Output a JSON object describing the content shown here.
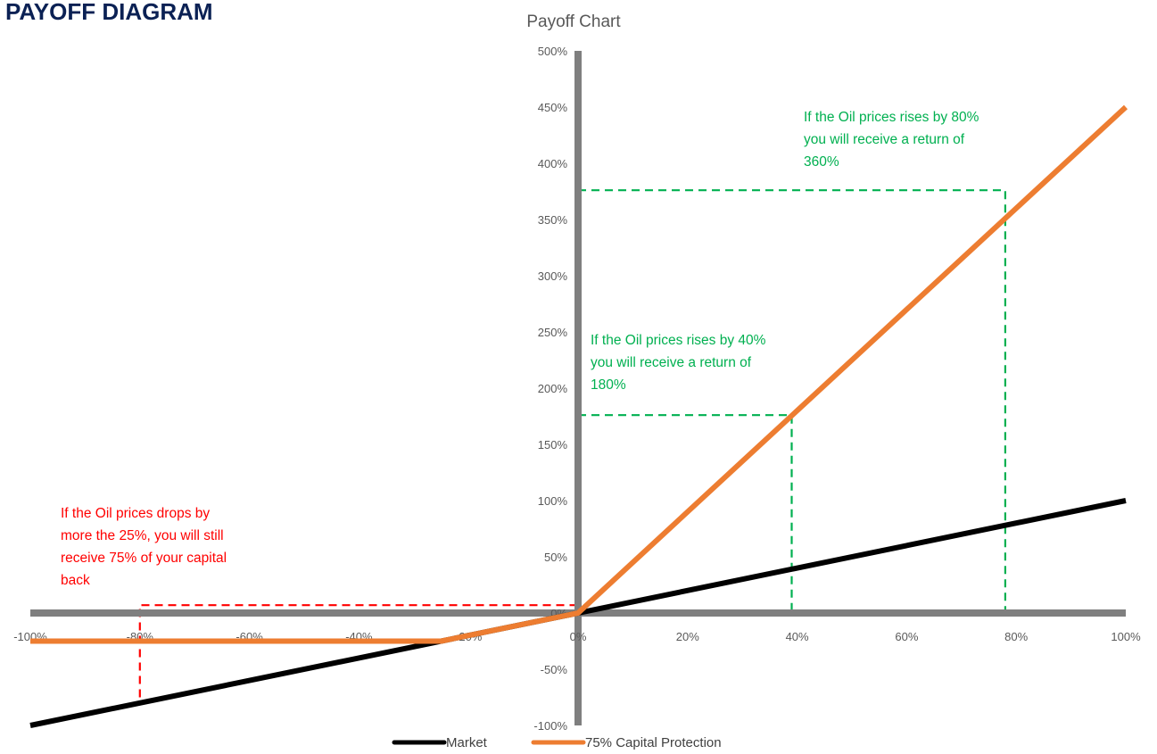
{
  "page": {
    "heading": "PAYOFF DIAGRAM"
  },
  "chart_data": {
    "type": "line",
    "title": "Payoff Chart",
    "xlabel": "",
    "ylabel": "",
    "xlim": [
      -100,
      100
    ],
    "ylim": [
      -100,
      500
    ],
    "x_ticks": [
      -100,
      -80,
      -60,
      -40,
      -20,
      0,
      20,
      40,
      60,
      80,
      100
    ],
    "x_tick_labels": [
      "-100%",
      "-80%",
      "-60%",
      "-40%",
      "-20%",
      "0%",
      "20%",
      "40%",
      "60%",
      "80%",
      "100%"
    ],
    "y_ticks": [
      500,
      450,
      400,
      350,
      300,
      250,
      200,
      150,
      100,
      50,
      0,
      -50,
      -100
    ],
    "y_tick_labels": [
      "500%",
      "450%",
      "400%",
      "350%",
      "300%",
      "250%",
      "200%",
      "150%",
      "100%",
      "50%",
      "0%",
      "-50%",
      "-100%"
    ],
    "grid": false,
    "legend_position": "bottom",
    "series": [
      {
        "name": "Market",
        "color": "#000000",
        "points": [
          [
            -100,
            -100
          ],
          [
            100,
            100
          ]
        ]
      },
      {
        "name": "75% Capital Protection",
        "color": "#ed7d31",
        "points": [
          [
            -100,
            -25
          ],
          [
            -25,
            -25
          ],
          [
            0,
            0
          ],
          [
            100,
            450
          ]
        ]
      }
    ],
    "guides": [
      {
        "color": "#ff0000",
        "points": [
          [
            -80,
            -75
          ],
          [
            -80,
            7
          ],
          [
            0,
            7
          ]
        ]
      },
      {
        "color": "#00b050",
        "points": [
          [
            0,
            176
          ],
          [
            39,
            176
          ],
          [
            39,
            0
          ]
        ]
      },
      {
        "color": "#00b050",
        "points": [
          [
            0,
            376
          ],
          [
            78,
            376
          ],
          [
            78,
            0
          ]
        ]
      }
    ],
    "annotations": [
      {
        "color": "#ff0000",
        "lines": [
          "If the Oil prices drops by",
          "more the 25%, you will still",
          "receive 75% of your capital",
          "back"
        ]
      },
      {
        "color": "#00b050",
        "lines": [
          "If the Oil prices rises by 40%",
          "you will receive a return of",
          "180%"
        ]
      },
      {
        "color": "#00b050",
        "lines": [
          "If the Oil prices rises by 80%",
          "you will receive a return of",
          "360%"
        ]
      }
    ]
  }
}
